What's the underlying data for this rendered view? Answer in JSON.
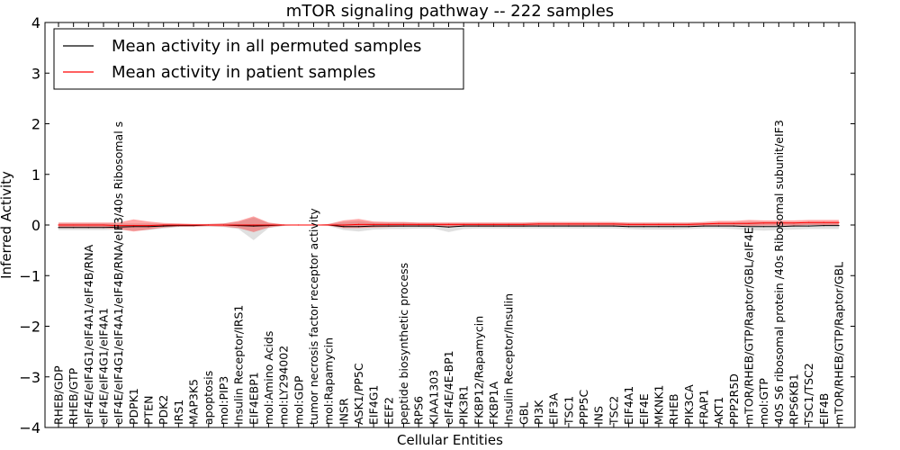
{
  "chart_data": {
    "type": "line",
    "title": "mTOR signaling pathway -- 222 samples",
    "xlabel": "Cellular Entities",
    "ylabel": "Inferred Activity",
    "ylim": [
      -4,
      4
    ],
    "yticks": [
      -4,
      -3,
      -2,
      -1,
      0,
      1,
      2,
      3,
      4
    ],
    "ytick_labels": [
      "−4",
      "−3",
      "−2",
      "−1",
      "0",
      "1",
      "2",
      "3",
      "4"
    ],
    "legend_position": "top-left",
    "categories": [
      "RHEB/GDP",
      "RHEB/GTP",
      "eIF4E/eIF4G1/eIF4A1/eIF4B/RNA",
      "eIF4E/eIF4G1/eIF4A1",
      "eIF4E/eIF4G1/eIF4A1/eIF4B/RNA/eIF3/40s Ribosomal s",
      "PDPK1",
      "PTEN",
      "PDK2",
      "IRS1",
      "MAP3K5",
      "apoptosis",
      "mol:PIP3",
      "Insulin Receptor/IRS1",
      "EIF4EBP1",
      "mol:Amino Acids",
      "mol:LY294002",
      "mol:GDP",
      "tumor necrosis factor receptor activity",
      "mol:Rapamycin",
      "INSR",
      "ASK1/PP5C",
      "EIF4G1",
      "EEF2",
      "peptide biosynthetic process",
      "RPS6",
      "KIAA1303",
      "eIF4E/4E-BP1",
      "PIK3R1",
      "FKBP12/Rapamycin",
      "FKBP1A",
      "Insulin Receptor/Insulin",
      "GBL",
      "PI3K",
      "EIF3A",
      "TSC1",
      "PPP5C",
      "INS",
      "TSC2",
      "EIF4A1",
      "EIF4E",
      "MKNK1",
      "RHEB",
      "PIK3CA",
      "FRAP1",
      "AKT1",
      "PPP2R5D",
      "mTOR/RHEB/GTP/Raptor/GBL/eIF4E",
      "mol:GTP",
      "40S S6 ribosomal protein /40s Ribosomal subunit/eIF3",
      "RPS6KB1",
      "TSC1/TSC2",
      "EIF4B",
      "mTOR/RHEB/GTP/Raptor/GBL"
    ],
    "series": [
      {
        "name": "Mean activity in all permuted samples",
        "color": "#000000",
        "values": [
          -0.05,
          -0.05,
          -0.05,
          -0.05,
          -0.04,
          -0.03,
          -0.03,
          -0.02,
          -0.01,
          -0.01,
          0.0,
          0.0,
          -0.01,
          -0.02,
          -0.01,
          0.0,
          0.0,
          0.0,
          0.0,
          -0.03,
          -0.03,
          -0.02,
          -0.02,
          -0.02,
          -0.02,
          -0.02,
          -0.04,
          -0.02,
          -0.02,
          -0.02,
          -0.02,
          -0.02,
          -0.02,
          -0.02,
          -0.02,
          -0.02,
          -0.02,
          -0.02,
          -0.03,
          -0.03,
          -0.03,
          -0.03,
          -0.03,
          -0.02,
          -0.02,
          -0.02,
          -0.03,
          -0.03,
          -0.03,
          -0.02,
          -0.02,
          -0.01,
          -0.01
        ],
        "band_lower": [
          -0.1,
          -0.1,
          -0.1,
          -0.1,
          -0.09,
          -0.11,
          -0.1,
          -0.07,
          -0.04,
          -0.03,
          -0.03,
          -0.04,
          -0.08,
          -0.3,
          -0.06,
          -0.02,
          0.0,
          0.0,
          -0.02,
          -0.1,
          -0.13,
          -0.09,
          -0.08,
          -0.08,
          -0.07,
          -0.07,
          -0.14,
          -0.08,
          -0.07,
          -0.07,
          -0.07,
          -0.07,
          -0.07,
          -0.07,
          -0.07,
          -0.07,
          -0.07,
          -0.07,
          -0.08,
          -0.09,
          -0.09,
          -0.09,
          -0.08,
          -0.07,
          -0.07,
          -0.08,
          -0.1,
          -0.11,
          -0.1,
          -0.09,
          -0.08,
          -0.08,
          -0.08
        ],
        "band_upper": [
          0.03,
          0.03,
          0.03,
          0.03,
          0.03,
          0.03,
          0.03,
          0.02,
          0.02,
          0.01,
          0.02,
          0.03,
          0.06,
          0.15,
          0.04,
          0.01,
          0.0,
          0.0,
          0.02,
          0.06,
          0.08,
          0.05,
          0.05,
          0.05,
          0.04,
          0.04,
          0.04,
          0.04,
          0.04,
          0.04,
          0.04,
          0.04,
          0.04,
          0.04,
          0.04,
          0.04,
          0.04,
          0.04,
          0.04,
          0.04,
          0.04,
          0.04,
          0.04,
          0.04,
          0.04,
          0.05,
          0.06,
          0.06,
          0.06,
          0.05,
          0.05,
          0.05,
          0.05
        ]
      },
      {
        "name": "Mean activity in patient samples",
        "color": "#ff0000",
        "values": [
          0.0,
          0.0,
          0.0,
          0.0,
          -0.01,
          -0.01,
          -0.01,
          0.0,
          0.0,
          0.0,
          0.0,
          0.0,
          0.0,
          0.0,
          0.0,
          0.0,
          0.0,
          0.0,
          0.0,
          0.0,
          0.01,
          0.01,
          0.01,
          0.01,
          0.01,
          0.01,
          0.01,
          0.01,
          0.01,
          0.01,
          0.01,
          0.01,
          0.02,
          0.02,
          0.02,
          0.02,
          0.02,
          0.02,
          0.01,
          0.01,
          0.01,
          0.01,
          0.01,
          0.02,
          0.03,
          0.03,
          0.03,
          0.04,
          0.04,
          0.04,
          0.05,
          0.05,
          0.05
        ],
        "band_lower": [
          -0.06,
          -0.06,
          -0.06,
          -0.06,
          -0.08,
          -0.13,
          -0.09,
          -0.05,
          -0.03,
          -0.03,
          -0.02,
          -0.03,
          -0.06,
          -0.14,
          -0.05,
          -0.01,
          0.0,
          0.0,
          -0.01,
          -0.06,
          -0.06,
          -0.05,
          -0.04,
          -0.03,
          -0.03,
          -0.03,
          -0.03,
          -0.03,
          -0.03,
          -0.03,
          -0.03,
          -0.03,
          -0.02,
          -0.02,
          -0.02,
          -0.02,
          -0.02,
          -0.02,
          -0.02,
          -0.02,
          -0.02,
          -0.02,
          -0.02,
          -0.01,
          -0.01,
          -0.01,
          -0.02,
          -0.01,
          -0.01,
          -0.01,
          0.0,
          0.0,
          0.0
        ],
        "band_upper": [
          0.05,
          0.05,
          0.05,
          0.05,
          0.05,
          0.11,
          0.07,
          0.04,
          0.03,
          0.02,
          0.02,
          0.03,
          0.08,
          0.17,
          0.05,
          0.01,
          0.0,
          0.0,
          0.02,
          0.09,
          0.12,
          0.07,
          0.06,
          0.06,
          0.05,
          0.05,
          0.05,
          0.05,
          0.05,
          0.05,
          0.05,
          0.05,
          0.06,
          0.06,
          0.06,
          0.06,
          0.06,
          0.06,
          0.05,
          0.05,
          0.05,
          0.05,
          0.05,
          0.06,
          0.08,
          0.08,
          0.1,
          0.09,
          0.09,
          0.09,
          0.1,
          0.1,
          0.1
        ]
      }
    ]
  }
}
